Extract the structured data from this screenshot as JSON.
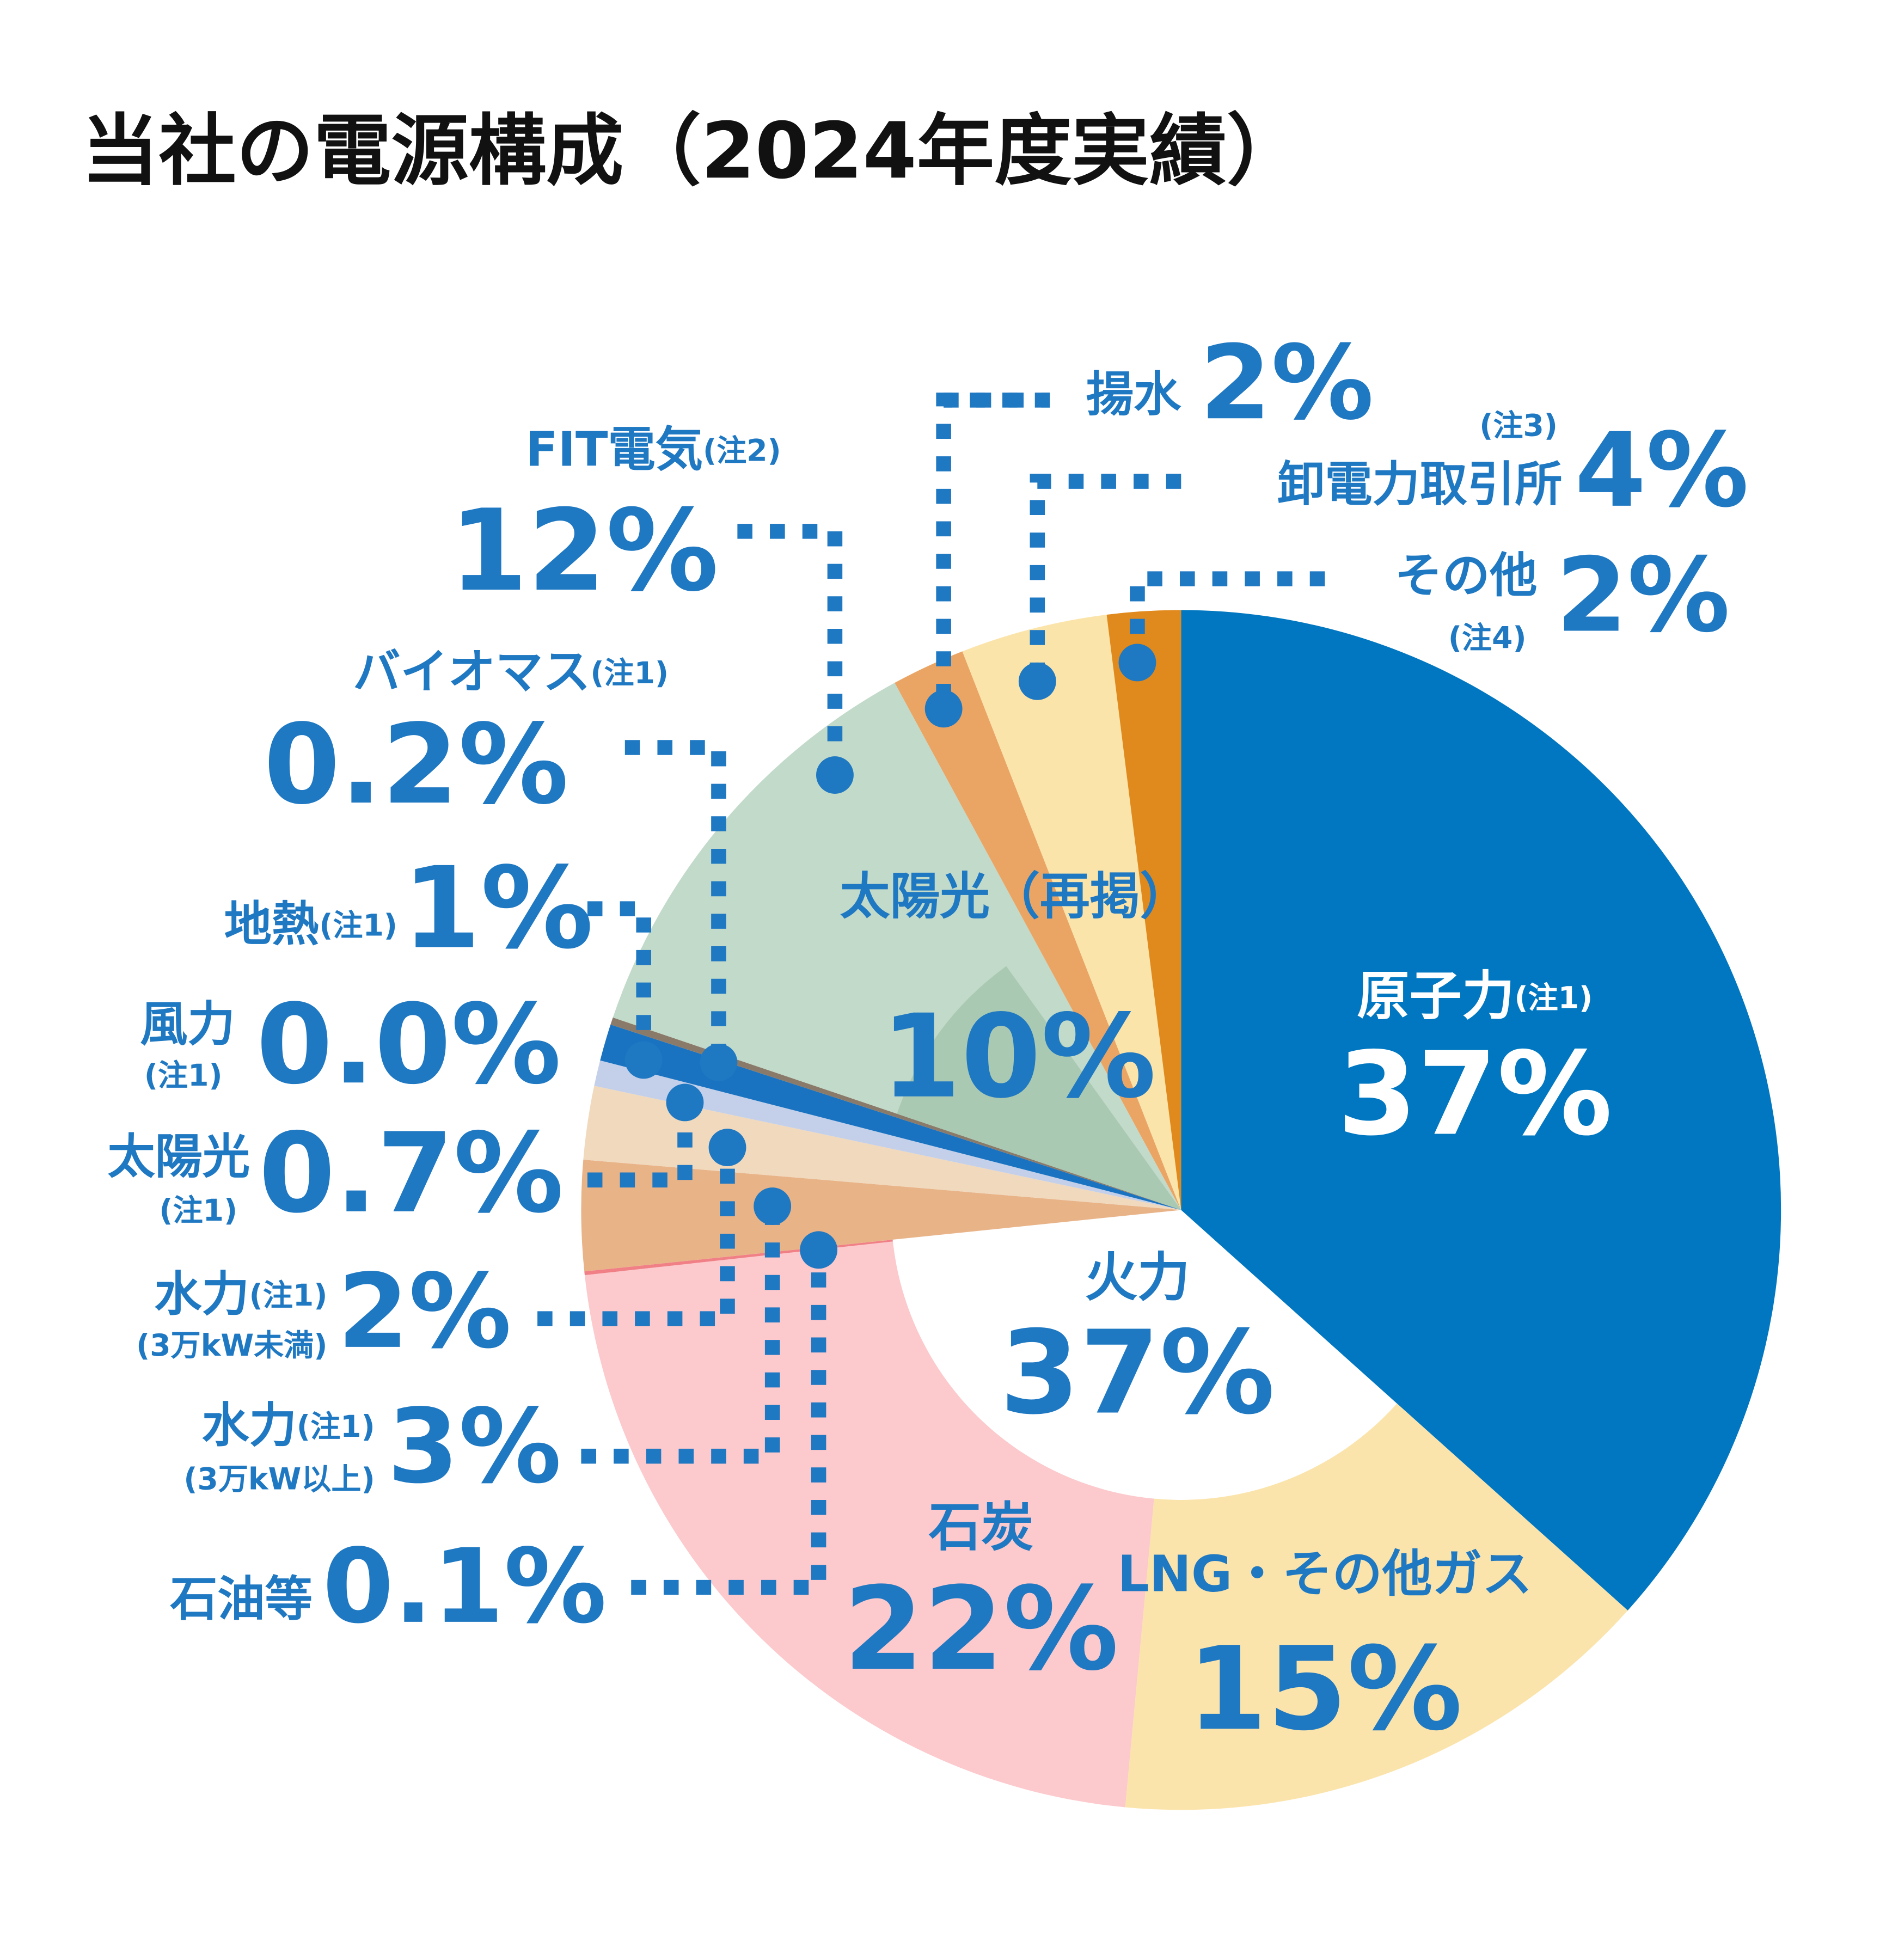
{
  "chart_data": {
    "type": "pie",
    "title": "当社の電源構成（2024年度実績）",
    "categories": [
      "原子力",
      "LNG・その他ガス",
      "石炭",
      "石油等",
      "水力",
      "水力",
      "太陽光",
      "風力",
      "地熱",
      "バイオマス",
      "FIT電気",
      "揚水",
      "卸電力取引所",
      "その他"
    ],
    "notes": [
      "(注1)",
      null,
      null,
      null,
      "(注1)",
      "(注1)",
      "(注1)",
      "(注1)",
      "(注1)",
      "(注1)",
      "(注2)",
      null,
      "(注3)",
      "(注4)"
    ],
    "sublabels": [
      null,
      null,
      null,
      null,
      "(3万kW以上)",
      "(3万kW未満)",
      null,
      null,
      null,
      null,
      null,
      null,
      null,
      null
    ],
    "values": [
      37,
      15,
      22,
      0.1,
      3,
      2,
      0.7,
      0,
      1,
      0.2,
      12,
      2,
      4,
      2
    ],
    "value_labels": [
      "37%",
      "15%",
      "22%",
      "0.1%",
      "3%",
      "2%",
      "0.7%",
      "0.0%",
      "1%",
      "0.2%",
      "12%",
      "2%",
      "4%",
      "2%"
    ],
    "colors": [
      "#0077c0",
      "#fbe4ab",
      "#fcc9cc",
      "#f07f86",
      "#e9b388",
      "#f0d9bd",
      "#c4d0ea",
      "#a3b2da",
      "#1a73c0",
      "#8a7a6a",
      "#c2dac9",
      "#eaa565",
      "#fbe4aa",
      "#e0891c"
    ],
    "group": {
      "name": "火力",
      "value": 37,
      "value_label": "37%"
    },
    "reprint": {
      "name": "太陽光（再掲）",
      "value": 10,
      "value_label": "10%",
      "color": "#a9c9b2"
    }
  }
}
